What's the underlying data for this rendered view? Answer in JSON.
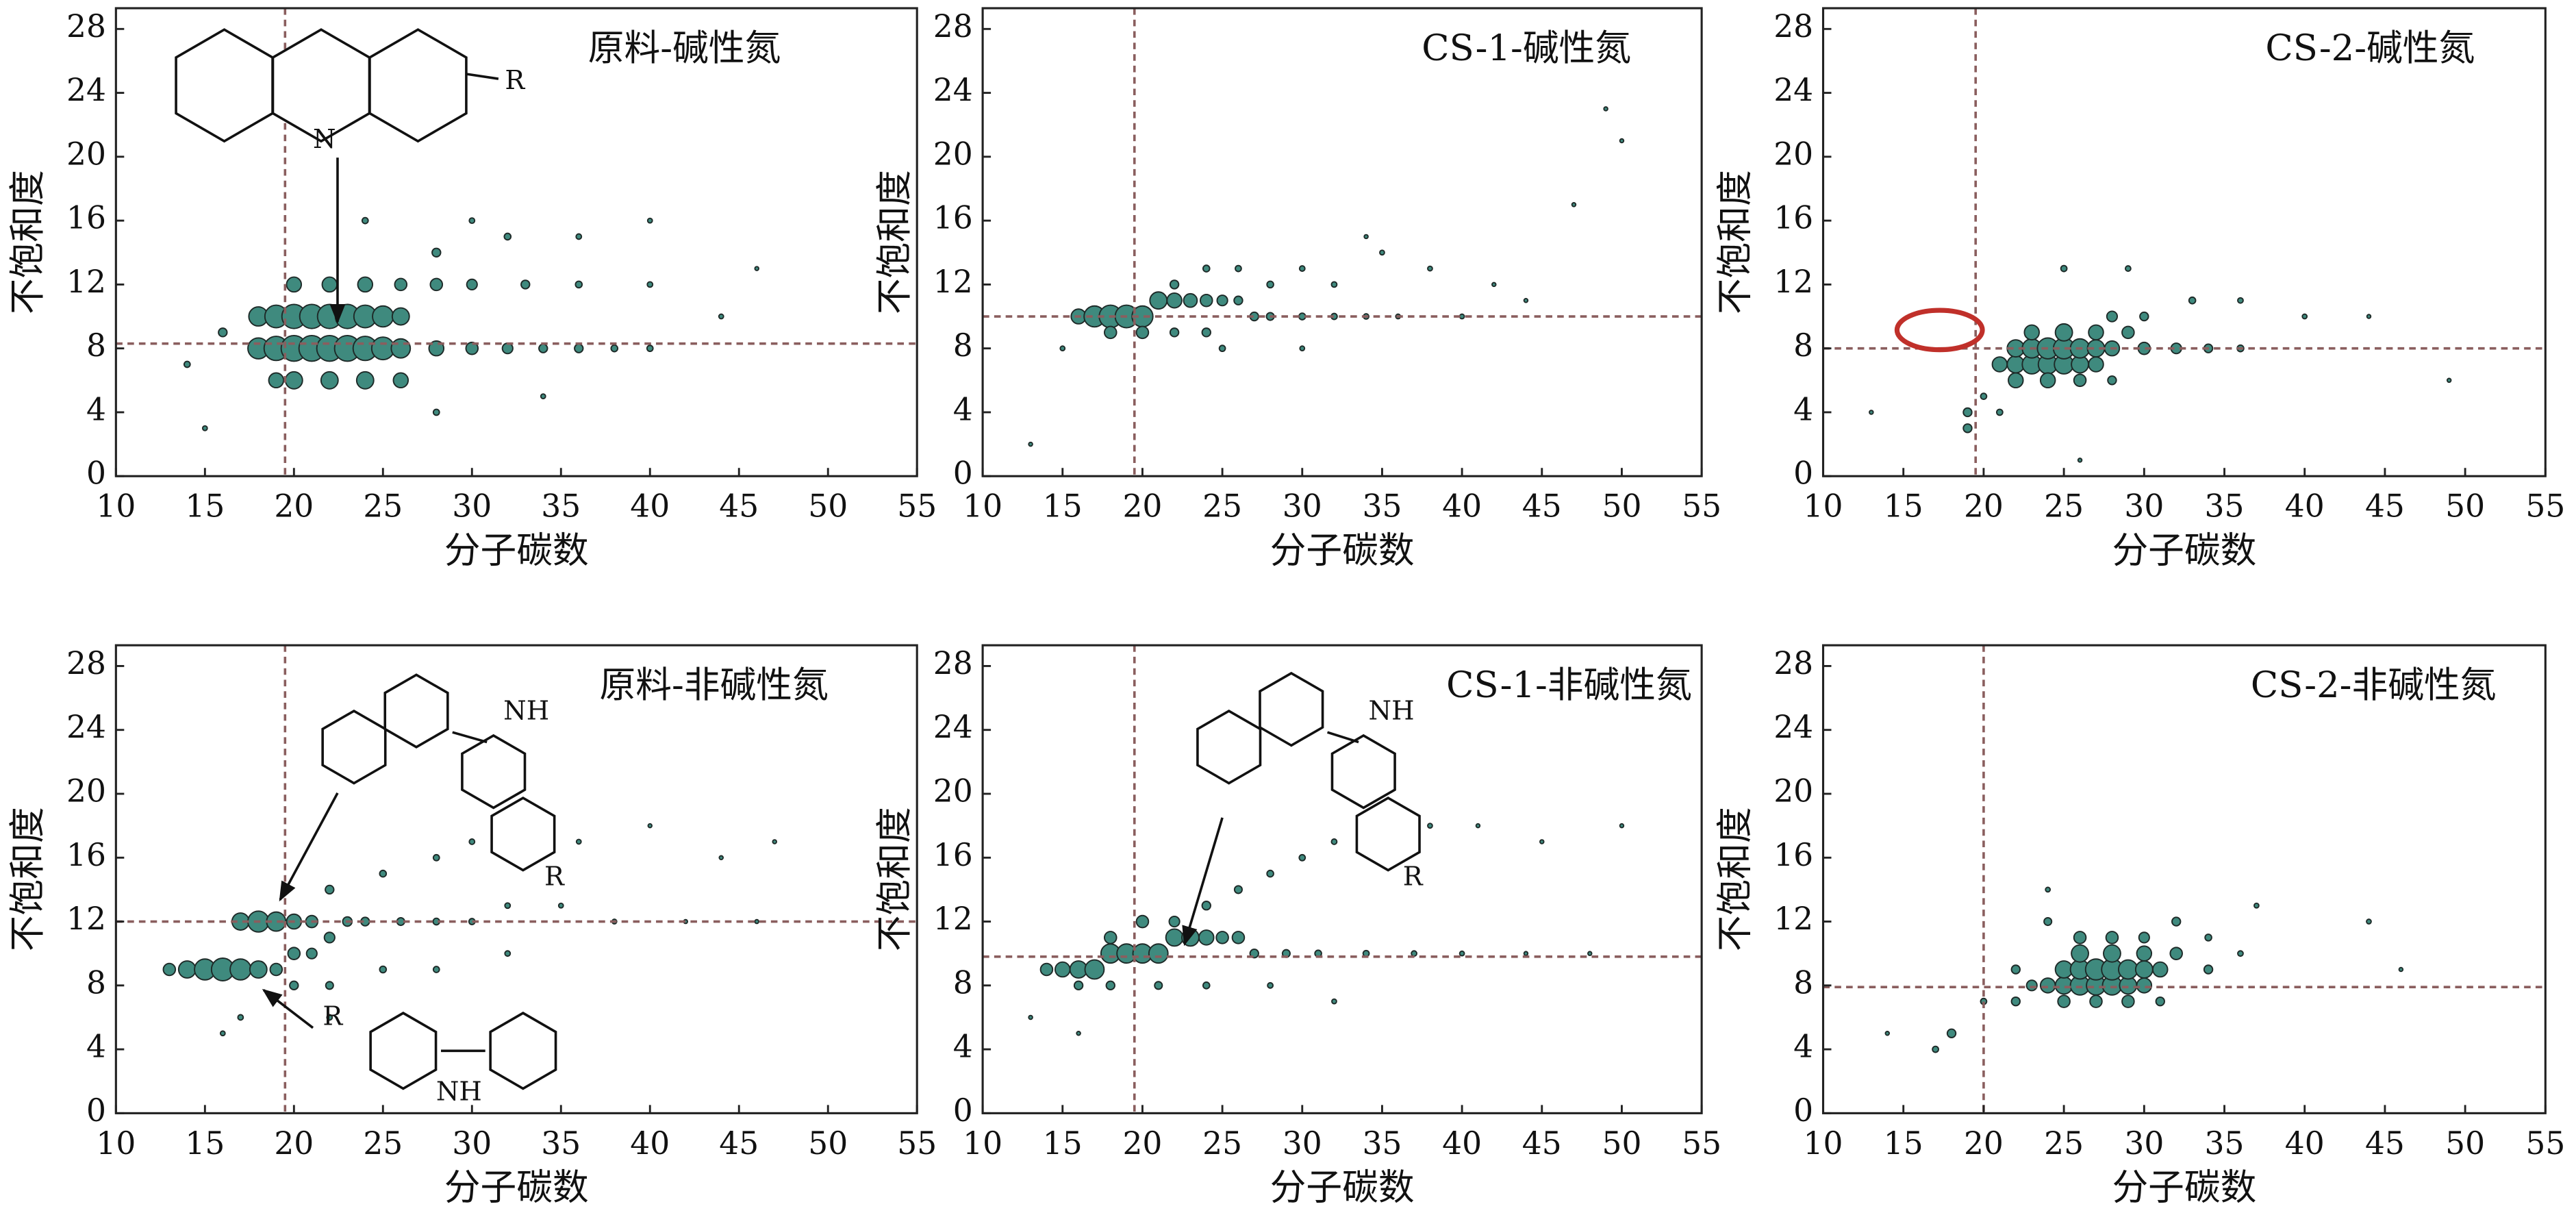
{
  "chart_data": [
    {
      "type": "bubble",
      "title": "原料-碱性氮",
      "x_label": "分子碳数",
      "y_label": "不饱和度",
      "xlim": [
        10,
        55
      ],
      "ylim": [
        0,
        29.3
      ],
      "xticks": [
        10,
        15,
        20,
        25,
        30,
        35,
        40,
        45,
        50,
        55
      ],
      "yticks": [
        0,
        4,
        8,
        12,
        16,
        20,
        24,
        28
      ],
      "ref_lines": {
        "x": 19.5,
        "y": 8.3
      },
      "color": "#3f8a7e",
      "edge_color": "#1e2a28",
      "ref_color": "#8a5e5e",
      "x": [
        18,
        19,
        20,
        21,
        22,
        23,
        24,
        25,
        26,
        18,
        19,
        20,
        21,
        22,
        23,
        24,
        25,
        26,
        19,
        20,
        22,
        24,
        26,
        20,
        22,
        24,
        26,
        28,
        30,
        32,
        34,
        36,
        38,
        40,
        28,
        30,
        33,
        36,
        40,
        28,
        32,
        36,
        40,
        24,
        30,
        28,
        34,
        15,
        14,
        16,
        44,
        46
      ],
      "y": [
        8,
        8,
        8,
        8,
        8,
        8,
        8,
        8,
        8,
        10,
        10,
        10,
        10,
        10,
        10,
        10,
        10,
        10,
        6,
        6,
        6,
        6,
        6,
        12,
        12,
        12,
        12,
        8,
        8,
        8,
        8,
        8,
        8,
        8,
        12,
        12,
        12,
        12,
        12,
        14,
        15,
        15,
        16,
        16,
        16,
        4,
        5,
        3,
        7,
        9,
        10,
        13
      ],
      "sizes": [
        6,
        8,
        9,
        9,
        9,
        9,
        8,
        7,
        5,
        5,
        7,
        8,
        8,
        8,
        8,
        7,
        6,
        4,
        3,
        4,
        4,
        4,
        3,
        3,
        3,
        3,
        2,
        3,
        2,
        1.5,
        1,
        1,
        0.6,
        0.5,
        2,
        1.5,
        1,
        0.6,
        0.4,
        1,
        0.6,
        0.4,
        0.3,
        0.5,
        0.4,
        0.5,
        0.3,
        0.3,
        0.5,
        1,
        0.3,
        0.2
      ],
      "annotations": [
        "N",
        "R"
      ]
    },
    {
      "type": "bubble",
      "title": "CS-1-碱性氮",
      "x_label": "分子碳数",
      "y_label": "不饱和度",
      "xlim": [
        10,
        55
      ],
      "ylim": [
        0,
        29.3
      ],
      "xticks": [
        10,
        15,
        20,
        25,
        30,
        35,
        40,
        45,
        50,
        55
      ],
      "yticks": [
        0,
        4,
        8,
        12,
        16,
        20,
        24,
        28
      ],
      "ref_lines": {
        "x": 19.5,
        "y": 10
      },
      "color": "#3f8a7e",
      "edge_color": "#1e2a28",
      "ref_color": "#8a5e5e",
      "x": [
        16,
        17,
        18,
        19,
        20,
        21,
        22,
        23,
        24,
        25,
        26,
        27,
        28,
        30,
        32,
        34,
        36,
        40,
        18,
        20,
        22,
        24,
        22,
        24,
        26,
        28,
        30,
        32,
        35,
        38,
        42,
        44,
        34,
        47,
        49,
        50,
        13,
        15,
        25,
        30
      ],
      "y": [
        10,
        10,
        10,
        10,
        10,
        11,
        11,
        11,
        11,
        11,
        11,
        10,
        10,
        10,
        10,
        10,
        10,
        10,
        9,
        9,
        9,
        9,
        12,
        13,
        13,
        12,
        13,
        12,
        14,
        13,
        12,
        11,
        15,
        17,
        23,
        21,
        2,
        8,
        8,
        8
      ],
      "sizes": [
        3,
        6,
        7,
        7,
        6,
        4,
        3,
        2.5,
        2,
        1.5,
        1,
        1,
        0.8,
        0.6,
        0.5,
        0.4,
        0.3,
        0.3,
        2,
        2,
        1,
        1,
        1,
        0.6,
        0.5,
        0.6,
        0.4,
        0.4,
        0.3,
        0.3,
        0.2,
        0.2,
        0.2,
        0.2,
        0.2,
        0.2,
        0.2,
        0.3,
        0.5,
        0.3
      ]
    },
    {
      "type": "bubble",
      "title": "CS-2-碱性氮",
      "x_label": "分子碳数",
      "y_label": "不饱和度",
      "xlim": [
        10,
        55
      ],
      "ylim": [
        0,
        29.3
      ],
      "xticks": [
        10,
        15,
        20,
        25,
        30,
        35,
        40,
        45,
        50,
        55
      ],
      "yticks": [
        0,
        4,
        8,
        12,
        16,
        20,
        24,
        28
      ],
      "ref_lines": {
        "x": 19.5,
        "y": 8
      },
      "color": "#3f8a7e",
      "edge_color": "#1e2a28",
      "ref_color": "#8a5e5e",
      "x": [
        21,
        22,
        23,
        24,
        25,
        26,
        27,
        22,
        23,
        24,
        25,
        26,
        27,
        28,
        23,
        25,
        27,
        29,
        22,
        24,
        26,
        28,
        30,
        32,
        34,
        36,
        28,
        30,
        33,
        36,
        40,
        44,
        49,
        25,
        29,
        20,
        19,
        19,
        21,
        26,
        13
      ],
      "y": [
        7,
        7,
        7,
        7,
        7,
        7,
        7,
        8,
        8,
        8,
        8,
        8,
        8,
        8,
        9,
        9,
        9,
        9,
        6,
        6,
        6,
        6,
        8,
        8,
        8,
        8,
        10,
        10,
        11,
        11,
        10,
        10,
        6,
        13,
        13,
        5,
        3,
        4,
        4,
        1,
        4
      ],
      "sizes": [
        3,
        4,
        5,
        5,
        5,
        4,
        3,
        4,
        5,
        6,
        6,
        5,
        4,
        3,
        3,
        4,
        3,
        2,
        3,
        3,
        2,
        1,
        2,
        1.5,
        1,
        0.6,
        1.5,
        1,
        0.6,
        0.4,
        0.3,
        0.2,
        0.2,
        0.5,
        0.4,
        0.5,
        1,
        1,
        0.5,
        0.2,
        0.2
      ]
    },
    {
      "type": "bubble",
      "title": "原料-非碱性氮",
      "x_label": "分子碳数",
      "y_label": "不饱和度",
      "xlim": [
        10,
        55
      ],
      "ylim": [
        0,
        29.3
      ],
      "xticks": [
        10,
        15,
        20,
        25,
        30,
        35,
        40,
        45,
        50,
        55
      ],
      "yticks": [
        0,
        4,
        8,
        12,
        16,
        20,
        24,
        28
      ],
      "ref_lines": {
        "x": 19.5,
        "y": 12
      },
      "color": "#3f8a7e",
      "edge_color": "#1e2a28",
      "ref_color": "#8a5e5e",
      "x": [
        17,
        18,
        19,
        20,
        21,
        13,
        14,
        15,
        16,
        17,
        18,
        19,
        20,
        21,
        22,
        23,
        24,
        26,
        28,
        30,
        32,
        35,
        38,
        42,
        46,
        22,
        25,
        28,
        30,
        33,
        36,
        40,
        44,
        47,
        20,
        22,
        25,
        28,
        32,
        17,
        16,
        22
      ],
      "y": [
        12,
        12,
        12,
        12,
        12,
        9,
        9,
        9,
        9,
        9,
        9,
        9,
        10,
        10,
        11,
        12,
        12,
        12,
        12,
        12,
        13,
        13,
        12,
        12,
        12,
        14,
        15,
        16,
        17,
        18,
        17,
        18,
        16,
        17,
        8,
        8,
        9,
        9,
        10,
        6,
        5,
        6
      ],
      "sizes": [
        4,
        6,
        5,
        3,
        2,
        2,
        4,
        6,
        7,
        6,
        4,
        2,
        2,
        1.5,
        1.5,
        1.2,
        1,
        0.8,
        0.6,
        0.5,
        0.4,
        0.3,
        0.3,
        0.2,
        0.2,
        1,
        0.6,
        0.5,
        0.4,
        0.3,
        0.3,
        0.2,
        0.2,
        0.2,
        1,
        0.8,
        0.6,
        0.5,
        0.4,
        0.4,
        0.3,
        0.4
      ],
      "annotations": [
        "NH",
        "R",
        "R",
        "NH"
      ]
    },
    {
      "type": "bubble",
      "title": "CS-1-非碱性氮",
      "x_label": "分子碳数",
      "y_label": "不饱和度",
      "xlim": [
        10,
        55
      ],
      "ylim": [
        0,
        29.3
      ],
      "xticks": [
        10,
        15,
        20,
        25,
        30,
        35,
        40,
        45,
        50,
        55
      ],
      "yticks": [
        0,
        4,
        8,
        12,
        16,
        20,
        24,
        28
      ],
      "ref_lines": {
        "x": 19.5,
        "y": 9.8
      },
      "color": "#3f8a7e",
      "edge_color": "#1e2a28",
      "ref_color": "#8a5e5e",
      "x": [
        14,
        15,
        16,
        17,
        18,
        19,
        20,
        21,
        22,
        23,
        24,
        25,
        26,
        18,
        20,
        22,
        24,
        26,
        28,
        30,
        32,
        35,
        38,
        41,
        45,
        50,
        27,
        29,
        31,
        34,
        37,
        40,
        44,
        48,
        16,
        18,
        21,
        24,
        28,
        32,
        13,
        16
      ],
      "y": [
        9,
        9,
        9,
        9,
        10,
        10,
        10,
        10,
        11,
        11,
        11,
        11,
        11,
        11,
        12,
        12,
        13,
        14,
        15,
        16,
        17,
        18,
        18,
        18,
        17,
        18,
        10,
        10,
        10,
        10,
        10,
        10,
        10,
        10,
        8,
        8,
        8,
        8,
        8,
        7,
        6,
        5
      ],
      "sizes": [
        2,
        3,
        4,
        5,
        5,
        5,
        5,
        5,
        4,
        4,
        3,
        2,
        2,
        2,
        2,
        1.5,
        1,
        0.8,
        0.6,
        0.5,
        0.4,
        0.3,
        0.3,
        0.2,
        0.2,
        0.2,
        1,
        0.8,
        0.6,
        0.5,
        0.4,
        0.3,
        0.2,
        0.2,
        1,
        1,
        0.8,
        0.6,
        0.4,
        0.3,
        0.2,
        0.2
      ],
      "annotations": [
        "NH",
        "R"
      ]
    },
    {
      "type": "bubble",
      "title": "CS-2-非碱性氮",
      "x_label": "分子碳数",
      "y_label": "不饱和度",
      "xlim": [
        10,
        55
      ],
      "ylim": [
        0,
        29.3
      ],
      "xticks": [
        10,
        15,
        20,
        25,
        30,
        35,
        40,
        45,
        50,
        55
      ],
      "yticks": [
        0,
        4,
        8,
        12,
        16,
        20,
        24,
        28
      ],
      "ref_lines": {
        "x": 20,
        "y": 7.9
      },
      "color": "#3f8a7e",
      "edge_color": "#1e2a28",
      "ref_color": "#8a5e5e",
      "x": [
        24,
        25,
        26,
        27,
        28,
        29,
        30,
        25,
        26,
        27,
        28,
        29,
        30,
        31,
        26,
        28,
        30,
        32,
        25,
        27,
        29,
        31,
        26,
        28,
        30,
        32,
        24,
        23,
        22,
        22,
        34,
        34,
        36,
        37,
        24,
        44,
        46,
        20,
        18,
        17,
        14
      ],
      "y": [
        8,
        8,
        8,
        8,
        8,
        8,
        8,
        9,
        9,
        9,
        9,
        9,
        9,
        9,
        10,
        10,
        10,
        10,
        7,
        7,
        7,
        7,
        11,
        11,
        11,
        12,
        12,
        8,
        9,
        7,
        9,
        11,
        10,
        13,
        14,
        12,
        9,
        7,
        5,
        4,
        5
      ],
      "sizes": [
        3,
        4,
        5,
        5,
        5,
        4,
        3,
        4,
        5,
        6,
        6,
        5,
        4,
        3,
        4,
        4,
        3,
        2,
        2,
        2,
        2,
        1,
        2,
        2,
        1.5,
        1,
        0.8,
        1.5,
        1,
        1,
        1,
        0.6,
        0.4,
        0.3,
        0.3,
        0.3,
        0.2,
        0.5,
        1,
        0.5,
        0.2
      ]
    }
  ]
}
